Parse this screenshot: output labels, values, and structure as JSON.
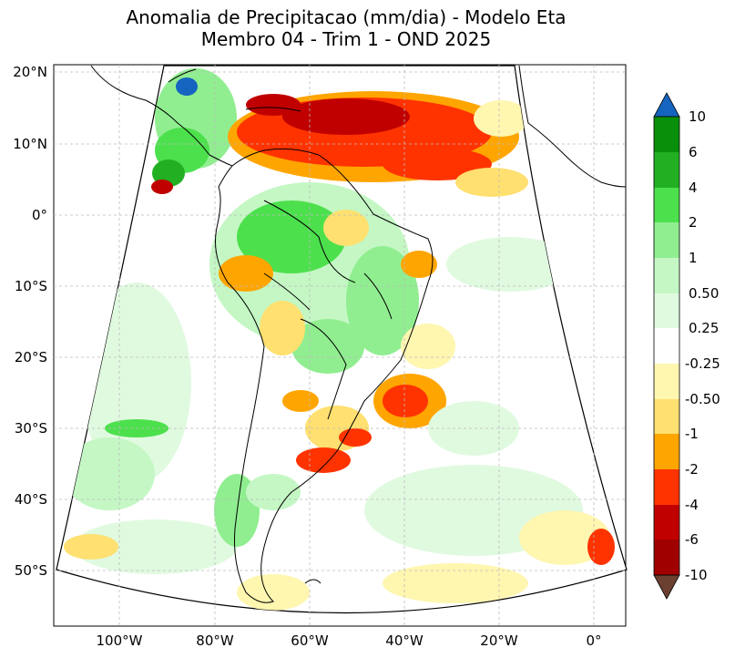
{
  "title": {
    "line1": "Anomalia de Precipitacao (mm/dia) - Modelo Eta",
    "line2": "Membro 04 - Trim 1 - OND 2025"
  },
  "axes": {
    "lat_labels": [
      "20°N",
      "10°N",
      "0°",
      "10°S",
      "20°S",
      "30°S",
      "40°S",
      "50°S"
    ],
    "lon_labels": [
      "100°W",
      "80°W",
      "60°W",
      "40°W",
      "20°W",
      "0°"
    ]
  },
  "colorbar": {
    "labels": [
      "10",
      "6",
      "4",
      "2",
      "1",
      "0.50",
      "0.25",
      "-0.25",
      "-0.50",
      "-1",
      "-2",
      "-4",
      "-6",
      "-10"
    ],
    "colors": [
      "#1565c0",
      "#0a8f0a",
      "#22b022",
      "#4de04d",
      "#90ee90",
      "#c4f7c4",
      "#e0fae0",
      "#ffffff",
      "#fff6b0",
      "#ffe070",
      "#ffa500",
      "#ff3300",
      "#c00000",
      "#a00000",
      "#6b4030"
    ]
  },
  "map_colors": {
    "ocean": "#ffffff",
    "outside": "#ffffff",
    "coast": "#000000",
    "grid": "#bbbbbb"
  }
}
